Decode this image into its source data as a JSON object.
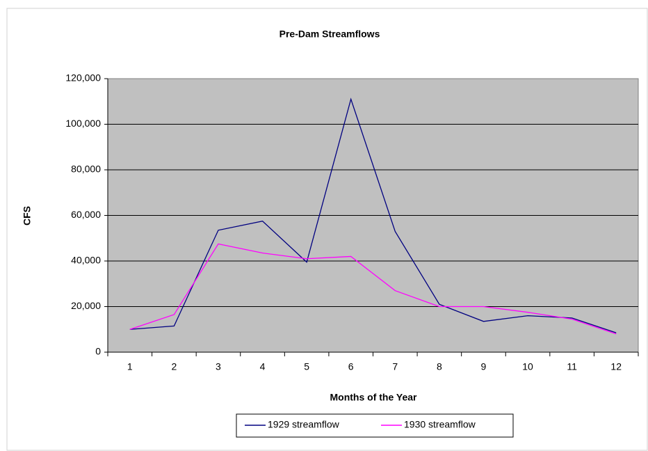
{
  "chart_data": {
    "type": "line",
    "title": "Pre-Dam Streamflows",
    "x_label": "Months of the Year",
    "y_label": "CFS",
    "categories": [
      "1",
      "2",
      "3",
      "4",
      "5",
      "6",
      "7",
      "8",
      "9",
      "10",
      "11",
      "12"
    ],
    "series": [
      {
        "name": "1929 streamflow",
        "color": "#000080",
        "values": [
          10000,
          11500,
          53500,
          57500,
          39500,
          111000,
          53000,
          21000,
          13500,
          16000,
          15000,
          8500
        ]
      },
      {
        "name": "1930 streamflow",
        "color": "#ff00ff",
        "values": [
          10000,
          16500,
          47500,
          43500,
          41000,
          42000,
          27000,
          20000,
          20000,
          17500,
          14500,
          8000
        ]
      }
    ],
    "ylim": [
      0,
      120000
    ],
    "yticks": [
      0,
      {
        "value": 20000,
        "label": "20,000"
      },
      {
        "value": 40000,
        "label": "40,000"
      },
      {
        "value": 60000,
        "label": "60,000"
      },
      {
        "value": 80000,
        "label": "80,000"
      },
      {
        "value": 100000,
        "label": "100,000"
      },
      {
        "value": 120000,
        "label": "120,000"
      }
    ],
    "grid": true,
    "legend": "bottom"
  }
}
